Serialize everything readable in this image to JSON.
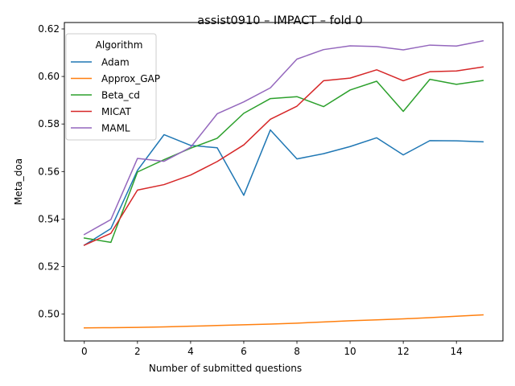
{
  "chart_data": {
    "type": "line",
    "title": "assist0910 – IMPACT – fold 0",
    "xlabel": "Number of submitted questions",
    "ylabel": "Meta_doa",
    "xlim": [
      -0.75,
      15.75
    ],
    "ylim": [
      0.4887,
      0.6227
    ],
    "xticks": [
      0,
      2,
      4,
      6,
      8,
      10,
      12,
      14
    ],
    "yticks": [
      0.5,
      0.52,
      0.54,
      0.56,
      0.58,
      0.6,
      0.62
    ],
    "ytick_labels": [
      "0.50",
      "0.52",
      "0.54",
      "0.56",
      "0.58",
      "0.60",
      "0.62"
    ],
    "grid": false,
    "legend": {
      "title": "Algorithm",
      "placement": "upper-left"
    },
    "x": [
      0,
      1,
      2,
      3,
      4,
      5,
      6,
      7,
      8,
      9,
      10,
      11,
      12,
      13,
      14,
      15
    ],
    "series": [
      {
        "name": "Adam",
        "color": "#1f77b4",
        "values": [
          0.529,
          0.536,
          0.5605,
          0.5755,
          0.571,
          0.57,
          0.55,
          0.5775,
          0.5653,
          0.5675,
          0.5705,
          0.5742,
          0.567,
          0.573,
          0.5729,
          0.5725
        ]
      },
      {
        "name": "Approx_GAP",
        "color": "#ff7f0e",
        "values": [
          0.4942,
          0.4943,
          0.4944,
          0.4946,
          0.4949,
          0.4952,
          0.4955,
          0.4958,
          0.4962,
          0.4967,
          0.4972,
          0.4976,
          0.498,
          0.4985,
          0.4991,
          0.4997
        ]
      },
      {
        "name": "Beta_cd",
        "color": "#2ca02c",
        "values": [
          0.532,
          0.5302,
          0.5598,
          0.565,
          0.5698,
          0.574,
          0.5845,
          0.5907,
          0.5915,
          0.5873,
          0.5943,
          0.598,
          0.5853,
          0.5988,
          0.5967,
          0.5983
        ]
      },
      {
        "name": "MICAT",
        "color": "#d62728",
        "values": [
          0.529,
          0.534,
          0.5522,
          0.5545,
          0.5585,
          0.5642,
          0.5712,
          0.582,
          0.5875,
          0.5982,
          0.5993,
          0.6028,
          0.5982,
          0.602,
          0.6023,
          0.604
        ]
      },
      {
        "name": "MAML",
        "color": "#9467bd",
        "values": [
          0.5335,
          0.5398,
          0.5655,
          0.5643,
          0.5702,
          0.5843,
          0.5893,
          0.5952,
          0.6073,
          0.6113,
          0.6129,
          0.6126,
          0.6112,
          0.6132,
          0.6128,
          0.615
        ]
      }
    ]
  }
}
